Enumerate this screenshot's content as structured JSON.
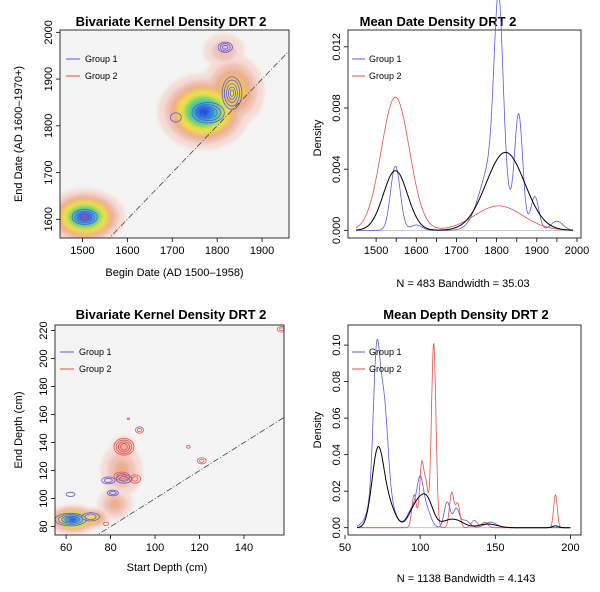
{
  "chart_data": [
    {
      "type": "heatmap",
      "title": "Bivariate Kernel Density DRT 2",
      "xlabel": "Begin Date (AD 1500–1958)",
      "ylabel": "End Date (AD 1600–1970+)",
      "xlim": [
        1450,
        1960
      ],
      "ylim": [
        1560,
        2005
      ],
      "xticks": [
        1500,
        1600,
        1700,
        1800,
        1900
      ],
      "yticks": [
        1600,
        1700,
        1800,
        1900,
        2000
      ],
      "legend": [
        "Group 1",
        "Group 2"
      ],
      "legend_colors": [
        "#5a5ae0",
        "#e05050"
      ],
      "density_blobs": [
        {
          "x": 1505,
          "y": 1605,
          "sx": 42,
          "sy": 28,
          "w": 1.0
        },
        {
          "x": 1770,
          "y": 1830,
          "sx": 48,
          "sy": 38,
          "w": 1.0
        },
        {
          "x": 1835,
          "y": 1875,
          "sx": 38,
          "sy": 42,
          "w": 0.55
        },
        {
          "x": 1815,
          "y": 1960,
          "sx": 32,
          "sy": 26,
          "w": 0.28
        }
      ],
      "contours": [
        {
          "group": 1,
          "x": 1505,
          "y": 1605,
          "levels": [
            [
              28,
              16
            ],
            [
              22,
              12
            ],
            [
              16,
              9
            ],
            [
              10,
              6
            ]
          ]
        },
        {
          "group": 2,
          "x": 1505,
          "y": 1605,
          "levels": [
            [
              6,
              4
            ],
            [
              3,
              2
            ]
          ]
        },
        {
          "group": 1,
          "x": 1780,
          "y": 1828,
          "levels": [
            [
              36,
              22
            ],
            [
              28,
              17
            ],
            [
              20,
              12
            ],
            [
              13,
              8
            ]
          ]
        },
        {
          "group": 1,
          "x": 1833,
          "y": 1870,
          "levels": [
            [
              22,
              35
            ],
            [
              17,
              28
            ],
            [
              12,
              20
            ],
            [
              8,
              13
            ],
            [
              4,
              7
            ]
          ]
        },
        {
          "group": 1,
          "x": 1818,
          "y": 1968,
          "levels": [
            [
              16,
              11
            ],
            [
              11,
              8
            ],
            [
              6,
              4
            ]
          ]
        },
        {
          "group": 1,
          "x": 1708,
          "y": 1818,
          "levels": [
            [
              12,
              10
            ]
          ]
        }
      ]
    },
    {
      "type": "line",
      "title": "Mean Date Density DRT 2",
      "ylabel": "Density",
      "subtitle": "N = 483   Bandwidth = 35.03",
      "xlim": [
        1430,
        2010
      ],
      "ylim": [
        -0.0005,
        0.0131
      ],
      "xticks": [
        1500,
        1550,
        1600,
        1650,
        1700,
        1750,
        1800,
        1850,
        1900,
        1950,
        2000
      ],
      "xtick_labels": [
        "1500",
        "",
        "1600",
        "",
        "1700",
        "",
        "1800",
        "",
        "1900",
        "",
        "2000"
      ],
      "yticks": [
        0.0,
        0.004,
        0.008,
        0.012
      ],
      "ytick_labels": [
        "0.000",
        "0.004",
        "0.008",
        "0.012"
      ],
      "legend": [
        "Group 1",
        "Group 2"
      ],
      "legend_colors": [
        "#5a5ae0",
        "#e05050"
      ],
      "range": [
        1450,
        1990
      ],
      "series": [
        {
          "name": "Group 1",
          "color": "#5a5ae0",
          "width": 0.8,
          "components": [
            [
              0.0042,
              1548,
              12
            ],
            [
              0.00035,
              1600,
              14
            ],
            [
              0.0115,
              1805,
              11
            ],
            [
              0.0045,
              1790,
              30
            ],
            [
              0.0072,
              1855,
              10
            ],
            [
              0.0022,
              1895,
              10
            ],
            [
              0.0006,
              1950,
              15
            ]
          ]
        },
        {
          "name": "Group 2",
          "color": "#e05050",
          "width": 0.8,
          "components": [
            [
              0.0087,
              1548,
              35
            ],
            [
              0.0016,
              1805,
              60
            ]
          ]
        },
        {
          "name": "All",
          "color": "#000000",
          "width": 1.0,
          "components": [
            [
              0.0039,
              1548,
              30
            ],
            [
              0.0051,
              1822,
              48
            ]
          ]
        }
      ]
    },
    {
      "type": "heatmap",
      "title": "Bivariate Kernel Density DRT 2",
      "xlabel": "Start Depth (cm)",
      "ylabel": "End Depth (cm)",
      "xlim": [
        55,
        158
      ],
      "ylim": [
        74,
        224
      ],
      "xticks": [
        60,
        80,
        100,
        120,
        140
      ],
      "yticks": [
        80,
        100,
        120,
        140,
        160,
        180,
        200,
        220
      ],
      "legend": [
        "Group 1",
        "Group 2"
      ],
      "legend_colors": [
        "#5a5ae0",
        "#e05050"
      ],
      "density_blobs": [
        {
          "x": 63,
          "y": 85,
          "sx": 5.5,
          "sy": 5,
          "w": 1.0
        },
        {
          "x": 72,
          "y": 86,
          "sx": 4,
          "sy": 4,
          "w": 0.6
        },
        {
          "x": 82,
          "y": 96,
          "sx": 5,
          "sy": 7,
          "w": 0.35
        },
        {
          "x": 85,
          "y": 120,
          "sx": 6,
          "sy": 12,
          "w": 0.35
        },
        {
          "x": 86,
          "y": 137,
          "sx": 3.5,
          "sy": 5,
          "w": 0.35
        }
      ],
      "contours": [
        {
          "group": 1,
          "x": 62,
          "y": 85,
          "levels": [
            [
              7,
              4.5
            ],
            [
              5.5,
              3.5
            ],
            [
              4,
              2.5
            ],
            [
              2.5,
              1.5
            ]
          ]
        },
        {
          "group": 1,
          "x": 71,
          "y": 87,
          "levels": [
            [
              4,
              3
            ],
            [
              2.5,
              2
            ]
          ]
        },
        {
          "group": 1,
          "x": 62,
          "y": 103,
          "levels": [
            [
              2,
              1.5
            ]
          ]
        },
        {
          "group": 1,
          "x": 81,
          "y": 104,
          "levels": [
            [
              2.5,
              2
            ],
            [
              1.5,
              1
            ]
          ]
        },
        {
          "group": 1,
          "x": 79,
          "y": 113,
          "levels": [
            [
              3,
              2.5
            ],
            [
              1.8,
              1.5
            ]
          ]
        },
        {
          "group": 1,
          "x": 86,
          "y": 114,
          "levels": [
            [
              3.5,
              3
            ],
            [
              2,
              1.7
            ]
          ]
        },
        {
          "group": 2,
          "x": 86,
          "y": 137,
          "levels": [
            [
              4.5,
              6
            ],
            [
              3.5,
              4.8
            ],
            [
              2.5,
              3.6
            ],
            [
              1.5,
              2.4
            ]
          ]
        },
        {
          "group": 2,
          "x": 85,
          "y": 116,
          "levels": [
            [
              3.5,
              3
            ],
            [
              2.2,
              2
            ]
          ]
        },
        {
          "group": 2,
          "x": 91,
          "y": 114,
          "levels": [
            [
              2.5,
              3
            ],
            [
              1.3,
              1.6
            ]
          ]
        },
        {
          "group": 2,
          "x": 93,
          "y": 149,
          "levels": [
            [
              1.8,
              2.3
            ],
            [
              1,
              1.2
            ]
          ]
        },
        {
          "group": 2,
          "x": 121,
          "y": 127,
          "levels": [
            [
              2,
              2.2
            ],
            [
              1,
              1.1
            ]
          ]
        },
        {
          "group": 2,
          "x": 115,
          "y": 137,
          "levels": [
            [
              0.8,
              1
            ]
          ]
        },
        {
          "group": 2,
          "x": 157,
          "y": 221,
          "levels": [
            [
              2,
              2
            ],
            [
              1,
              1
            ]
          ]
        },
        {
          "group": 2,
          "x": 78,
          "y": 82,
          "levels": [
            [
              1.2,
              1.2
            ]
          ]
        },
        {
          "group": 2,
          "x": 88,
          "y": 157,
          "levels": [
            [
              0.6,
              0.6
            ]
          ]
        }
      ]
    },
    {
      "type": "line",
      "title": "Mean Depth Density DRT 2",
      "ylabel": "Density",
      "subtitle": "N = 1138   Bandwidth = 4.143",
      "xlim": [
        52,
        207
      ],
      "ylim": [
        -0.004,
        0.111
      ],
      "xticks": [
        50,
        100,
        150,
        200
      ],
      "xtick_labels": [
        "50",
        "100",
        "150",
        "200"
      ],
      "yticks": [
        0.0,
        0.02,
        0.04,
        0.06,
        0.08,
        0.1
      ],
      "ytick_labels": [
        "0.00",
        "0.02",
        "0.04",
        "0.06",
        "0.08",
        "0.10"
      ],
      "legend": [
        "Group 1",
        "Group 2"
      ],
      "legend_colors": [
        "#5a5ae0",
        "#e05050"
      ],
      "range": [
        58,
        200
      ],
      "series": [
        {
          "name": "Group 1",
          "color": "#5a5ae0",
          "width": 0.8,
          "components": [
            [
              0.071,
              71,
              2.2
            ],
            [
              0.042,
              76,
              2.5
            ],
            [
              0.028,
              74,
              6
            ],
            [
              0.012,
              96,
              4
            ],
            [
              0.017,
              100,
              2
            ],
            [
              0.01,
              104,
              3
            ],
            [
              0.014,
              118,
              2
            ],
            [
              0.01,
              124,
              2
            ],
            [
              0.004,
              130,
              3
            ],
            [
              0.003,
              147,
              4
            ]
          ]
        },
        {
          "name": "Group 2",
          "color": "#e05050",
          "width": 0.8,
          "components": [
            [
              0.018,
              96,
              1.5
            ],
            [
              0.034,
              101,
              1.4
            ],
            [
              0.022,
              104,
              1.4
            ],
            [
              0.101,
              109,
              1.5
            ],
            [
              0.019,
              121,
              1.5
            ],
            [
              0.013,
              125,
              1.5
            ],
            [
              0.004,
              136,
              2
            ],
            [
              0.003,
              143,
              2
            ],
            [
              0.018,
              190,
              1.2
            ]
          ]
        },
        {
          "name": "All",
          "color": "#000000",
          "width": 1.0,
          "components": [
            [
              0.043,
              72,
              4
            ],
            [
              0.01,
              80,
              4
            ],
            [
              0.013,
              98,
              5
            ],
            [
              0.012,
              105,
              4
            ],
            [
              0.003,
              118,
              5
            ],
            [
              0.003,
              125,
              5
            ],
            [
              0.002,
              145,
              6
            ],
            [
              0.001,
              190,
              2
            ]
          ]
        }
      ]
    }
  ]
}
